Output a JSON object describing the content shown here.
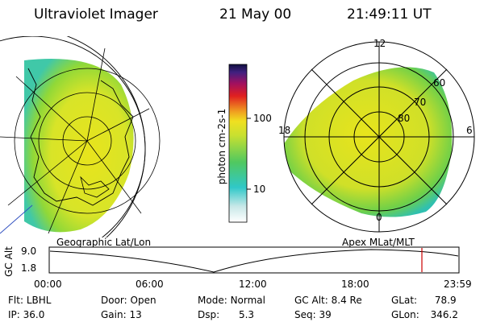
{
  "header": {
    "title": "Ultraviolet Imager",
    "date": "21 May 00",
    "time": "21:49:11 UT"
  },
  "colorbar": {
    "unit_label": "photon cm-2s-1",
    "ticks": [
      "100",
      "10"
    ]
  },
  "polar_plot": {
    "mlt_labels": [
      "12",
      "18",
      "6",
      "0"
    ],
    "lat_labels": [
      "60",
      "70",
      "80"
    ]
  },
  "timeline": {
    "left_caption": "Geographic Lat/Lon",
    "right_caption": "Apex MLat/MLT",
    "y_axis_title": "GC Alt",
    "y_ticks": [
      "9.0",
      "1.8"
    ],
    "x_ticks": [
      "00:00",
      "06:00",
      "12:00",
      "18:00",
      "23:59"
    ],
    "marker_time": "21:49"
  },
  "footer": {
    "row1": [
      {
        "label": "Flt:",
        "value": "LBHL"
      },
      {
        "label": "Door:",
        "value": "Open"
      },
      {
        "label": "Mode:",
        "value": "Normal"
      },
      {
        "label": "GC Alt:",
        "value": "8.4 Re"
      },
      {
        "label": "GLat:",
        "value": "78.9"
      }
    ],
    "row2": [
      {
        "label": "IP:",
        "value": "36.0"
      },
      {
        "label": "Gain:",
        "value": "13"
      },
      {
        "label": "Dsp:",
        "value": "5.3"
      },
      {
        "label": "Seq:",
        "value": "39"
      },
      {
        "label": "GLon:",
        "value": "346.2"
      }
    ]
  },
  "colors": {
    "marker": "#cc0000",
    "aurora_peak": "#e8e020",
    "aurora_mid": "#80d030",
    "aurora_low": "#30c0b0"
  }
}
